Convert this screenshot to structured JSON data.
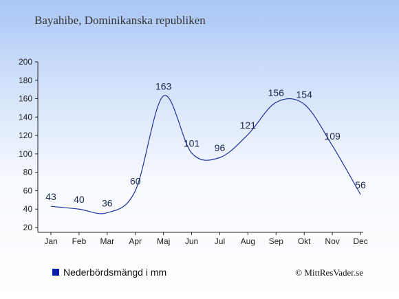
{
  "header": {
    "title": "Bayahibe, Dominikanska republiken"
  },
  "legend": {
    "label": "Nederbördsmängd i mm",
    "color": "#0b1fa6"
  },
  "credit": {
    "text": "© MittResVader.se"
  },
  "colors": {
    "line": "#1f2fa0",
    "axis": "#222222",
    "text": "#222222"
  },
  "chart_data": {
    "type": "line",
    "categories": [
      "Jan",
      "Feb",
      "Mar",
      "Apr",
      "Maj",
      "Jun",
      "Jul",
      "Aug",
      "Sep",
      "Okt",
      "Nov",
      "Dec"
    ],
    "series": [
      {
        "name": "Nederbördsmängd i mm",
        "values": [
          43,
          40,
          36,
          60,
          163,
          101,
          96,
          121,
          156,
          154,
          109,
          56
        ]
      }
    ],
    "ylim": [
      20,
      200
    ],
    "yticks": [
      20,
      40,
      60,
      80,
      100,
      120,
      140,
      160,
      180,
      200
    ],
    "grid": false,
    "legend_position": "bottom-left"
  }
}
